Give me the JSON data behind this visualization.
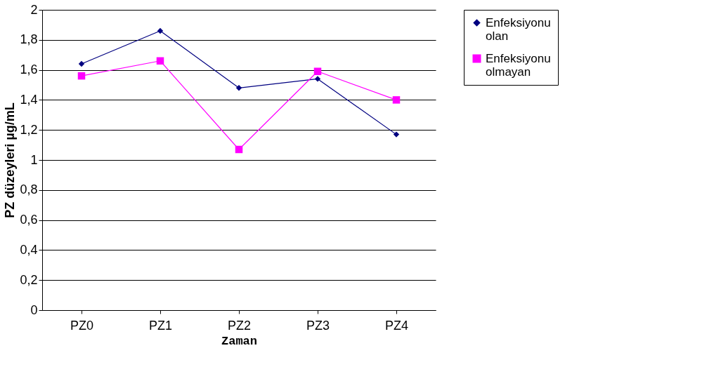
{
  "chart_data": {
    "type": "line",
    "xlabel": "Zaman",
    "ylabel": "PZ düzeyleri µg/mL",
    "categories": [
      "PZ0",
      "PZ1",
      "PZ2",
      "PZ3",
      "PZ4"
    ],
    "series": [
      {
        "name": "Enfeksiyonu olan",
        "color": "#000080",
        "marker": "diamond",
        "values": [
          1.64,
          1.86,
          1.48,
          1.54,
          1.17
        ]
      },
      {
        "name": "Enfeksiyonu olmayan",
        "color": "#ff00ff",
        "marker": "square",
        "values": [
          1.56,
          1.66,
          1.07,
          1.59,
          1.4
        ]
      }
    ],
    "ylim": [
      0,
      2
    ],
    "yticks": [
      0,
      {
        "value": 0.2,
        "label": "0,2"
      },
      {
        "value": 0.4,
        "label": "0,4"
      },
      {
        "value": 0.6,
        "label": "0,6"
      },
      {
        "value": 0.8,
        "label": "0,8"
      },
      1,
      {
        "value": 1.2,
        "label": "1,2"
      },
      {
        "value": 1.4,
        "label": "1,4"
      },
      {
        "value": 1.6,
        "label": "1,6"
      },
      {
        "value": 1.8,
        "label": "1,8"
      },
      2
    ],
    "grid": "y",
    "legend": "right",
    "line_style": "solid"
  }
}
